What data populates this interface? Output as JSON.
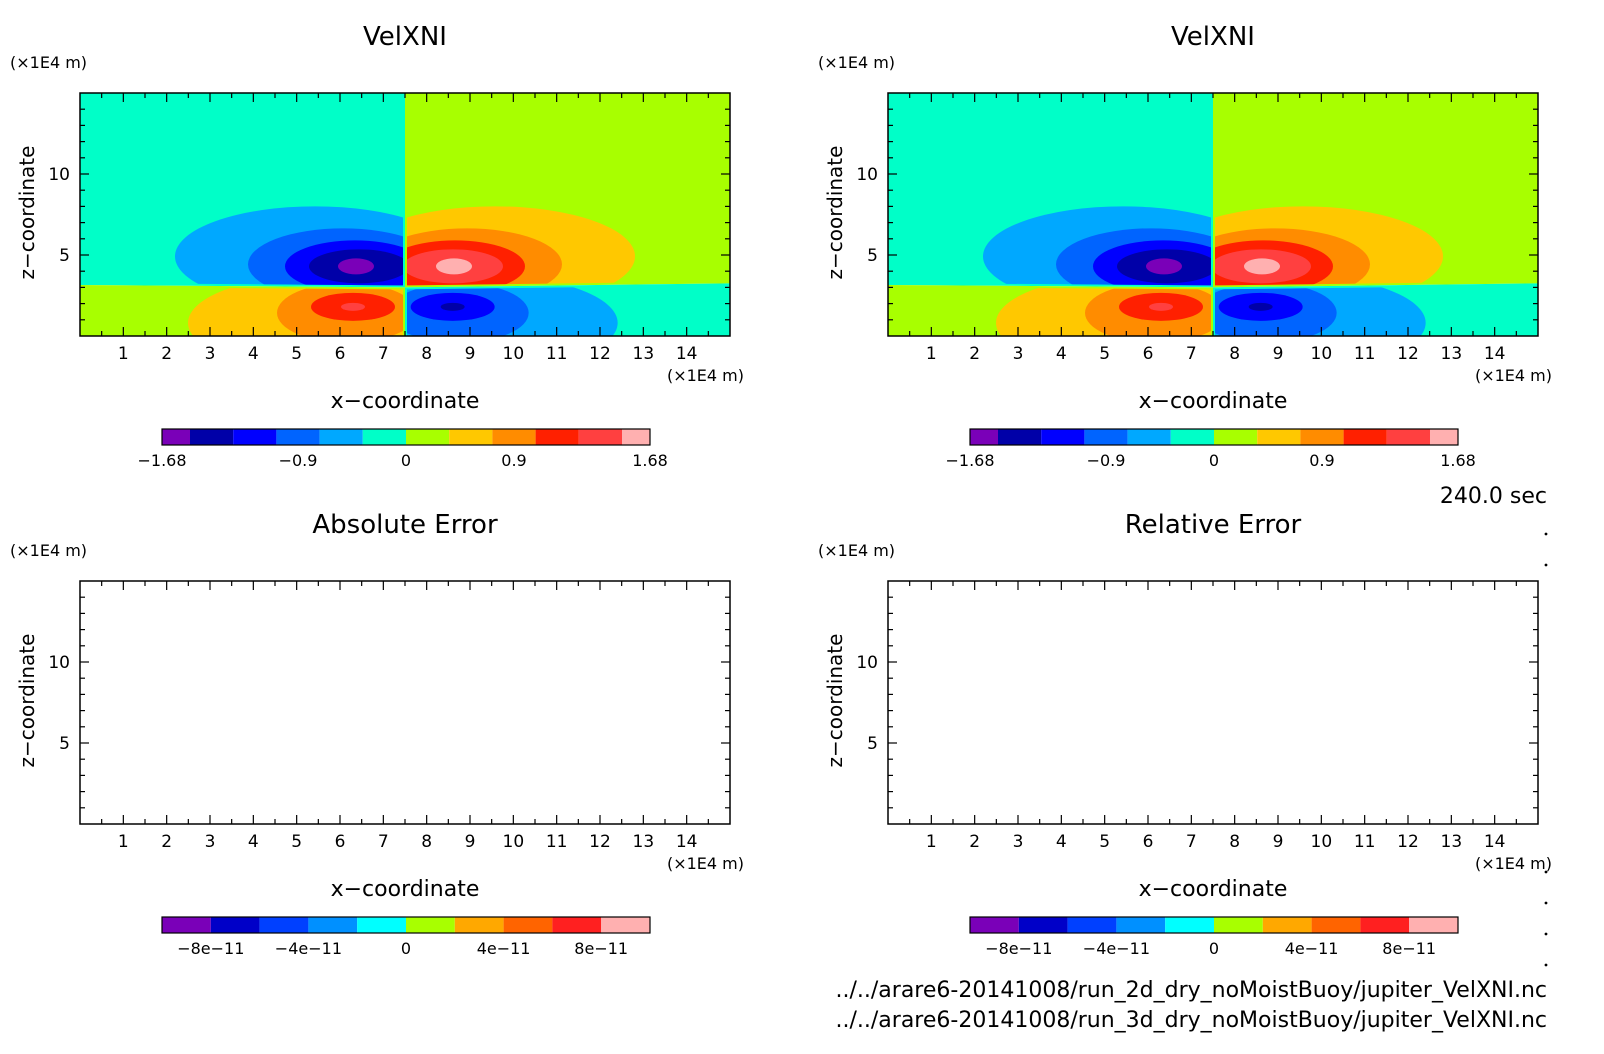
{
  "time_label": "240.0 sec",
  "footer": {
    "line1": "../../arare6-20141008/run_2d_dry_noMoistBuoy/jupiter_VelXNI.nc",
    "line2": "../../arare6-20141008/run_3d_dry_noMoistBuoy/jupiter_VelXNI.nc"
  },
  "colors": {
    "frame": "#000000",
    "background_neutral_pos": "#a8ff00",
    "background_neutral_neg": "#00ffc8"
  },
  "chart_data": [
    {
      "type": "heatmap",
      "title": "VelXNI",
      "xlabel": "x−coordinate",
      "ylabel": "z−coordinate",
      "x_unit": "(×1E4 m)",
      "y_unit": "(×1E4 m)",
      "xlim": [
        0,
        15
      ],
      "ylim": [
        0,
        15
      ],
      "xticks": [
        1,
        2,
        3,
        4,
        5,
        6,
        7,
        8,
        9,
        10,
        11,
        12,
        13,
        14
      ],
      "yticks": [
        5,
        10
      ],
      "field_structure": [
        {
          "feature": "negative core",
          "x": 6.3,
          "z": 4.3,
          "value": -1.68
        },
        {
          "feature": "positive core",
          "x": 8.7,
          "z": 4.3,
          "value": 1.68
        },
        {
          "feature": "positive core",
          "x": 6.3,
          "z": 1.8,
          "value": 1.2
        },
        {
          "feature": "negative core",
          "x": 8.6,
          "z": 1.8,
          "value": -1.2
        }
      ],
      "colorbar": {
        "ticks": [
          "−1.68",
          "−0.9",
          "0",
          "0.9",
          "1.68"
        ],
        "colors": [
          "#7a00b8",
          "#0000a8",
          "#0000ff",
          "#0064ff",
          "#00a8ff",
          "#00ffc8",
          "#a8ff00",
          "#ffc800",
          "#ff8c00",
          "#ff2000",
          "#ff4040",
          "#ffb0b0"
        ]
      }
    },
    {
      "type": "heatmap",
      "title": "VelXNI",
      "xlabel": "x−coordinate",
      "ylabel": "z−coordinate",
      "x_unit": "(×1E4 m)",
      "y_unit": "(×1E4 m)",
      "xlim": [
        0,
        15
      ],
      "ylim": [
        0,
        15
      ],
      "xticks": [
        1,
        2,
        3,
        4,
        5,
        6,
        7,
        8,
        9,
        10,
        11,
        12,
        13,
        14
      ],
      "yticks": [
        5,
        10
      ],
      "field_structure": [
        {
          "feature": "negative core",
          "x": 6.3,
          "z": 4.3,
          "value": -1.68
        },
        {
          "feature": "positive core",
          "x": 8.7,
          "z": 4.3,
          "value": 1.68
        },
        {
          "feature": "positive core",
          "x": 6.3,
          "z": 1.8,
          "value": 1.2
        },
        {
          "feature": "negative core",
          "x": 8.6,
          "z": 1.8,
          "value": -1.2
        }
      ],
      "colorbar": {
        "ticks": [
          "−1.68",
          "−0.9",
          "0",
          "0.9",
          "1.68"
        ],
        "colors": [
          "#7a00b8",
          "#0000a8",
          "#0000ff",
          "#0064ff",
          "#00a8ff",
          "#00ffc8",
          "#a8ff00",
          "#ffc800",
          "#ff8c00",
          "#ff2000",
          "#ff4040",
          "#ffb0b0"
        ]
      }
    },
    {
      "type": "heatmap",
      "title": "Absolute Error",
      "xlabel": "x−coordinate",
      "ylabel": "z−coordinate",
      "x_unit": "(×1E4 m)",
      "y_unit": "(×1E4 m)",
      "xlim": [
        0,
        15
      ],
      "ylim": [
        0,
        15
      ],
      "xticks": [
        1,
        2,
        3,
        4,
        5,
        6,
        7,
        8,
        9,
        10,
        11,
        12,
        13,
        14
      ],
      "yticks": [
        5,
        10
      ],
      "field_structure": [],
      "colorbar": {
        "ticks": [
          "−8e−11",
          "−4e−11",
          "0",
          "4e−11",
          "8e−11"
        ],
        "colors": [
          "#7a00b8",
          "#0000c8",
          "#0040ff",
          "#0090ff",
          "#00ffff",
          "#a8ff00",
          "#ffa800",
          "#ff6400",
          "#ff2020",
          "#ffb0b0"
        ]
      }
    },
    {
      "type": "heatmap",
      "title": "Relative Error",
      "xlabel": "x−coordinate",
      "ylabel": "z−coordinate",
      "x_unit": "(×1E4 m)",
      "y_unit": "(×1E4 m)",
      "xlim": [
        0,
        15
      ],
      "ylim": [
        0,
        15
      ],
      "xticks": [
        1,
        2,
        3,
        4,
        5,
        6,
        7,
        8,
        9,
        10,
        11,
        12,
        13,
        14
      ],
      "yticks": [
        5,
        10
      ],
      "field_structure": [],
      "colorbar": {
        "ticks": [
          "−8e−11",
          "−4e−11",
          "0",
          "4e−11",
          "8e−11"
        ],
        "colors": [
          "#7a00b8",
          "#0000c8",
          "#0040ff",
          "#0090ff",
          "#00ffff",
          "#a8ff00",
          "#ffa800",
          "#ff6400",
          "#ff2020",
          "#ffb0b0"
        ]
      }
    }
  ]
}
